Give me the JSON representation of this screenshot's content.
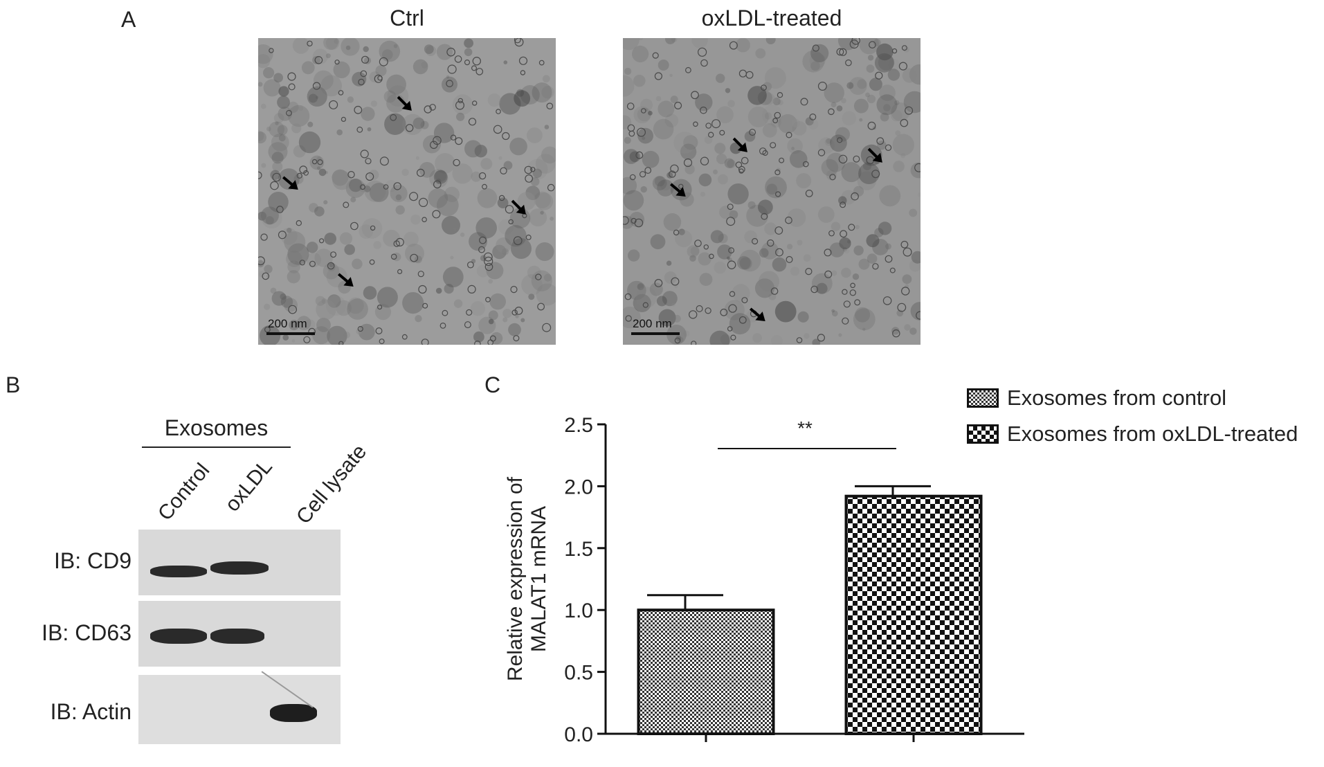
{
  "panelA": {
    "letter": "A",
    "images": [
      {
        "title": "Ctrl",
        "scale_bar": "200 nm",
        "bg": "#9c9c9c"
      },
      {
        "title": "oxLDL-treated",
        "scale_bar": "200 nm",
        "bg": "#979797"
      }
    ]
  },
  "panelB": {
    "letter": "B",
    "group_label": "Exosomes",
    "lanes": [
      "Control",
      "oxLDL",
      "Cell lysate"
    ],
    "blots": [
      {
        "label": "IB:  CD9",
        "bands": [
          1,
          1,
          0
        ]
      },
      {
        "label": "IB:  CD63",
        "bands": [
          1,
          1,
          0
        ]
      },
      {
        "label": "IB:  Actin",
        "bands": [
          0,
          0,
          1
        ]
      }
    ]
  },
  "panelC": {
    "letter": "C",
    "significance": "**",
    "chart_data": {
      "type": "bar",
      "ylabel": "Relative expression of MALAT1 mRNA",
      "xlabel": "",
      "ylim": [
        0,
        2.5
      ],
      "yticks": [
        "0.0",
        "0.5",
        "1.0",
        "1.5",
        "2.0",
        "2.5"
      ],
      "legend_position": "top-right",
      "series": [
        {
          "name": "Exosomes from control",
          "value": 1.0,
          "error": 0.12,
          "pattern": "fine-checker"
        },
        {
          "name": "Exosomes from oxLDL-treated",
          "value": 1.92,
          "error": 0.08,
          "pattern": "coarse-checker"
        }
      ]
    }
  }
}
